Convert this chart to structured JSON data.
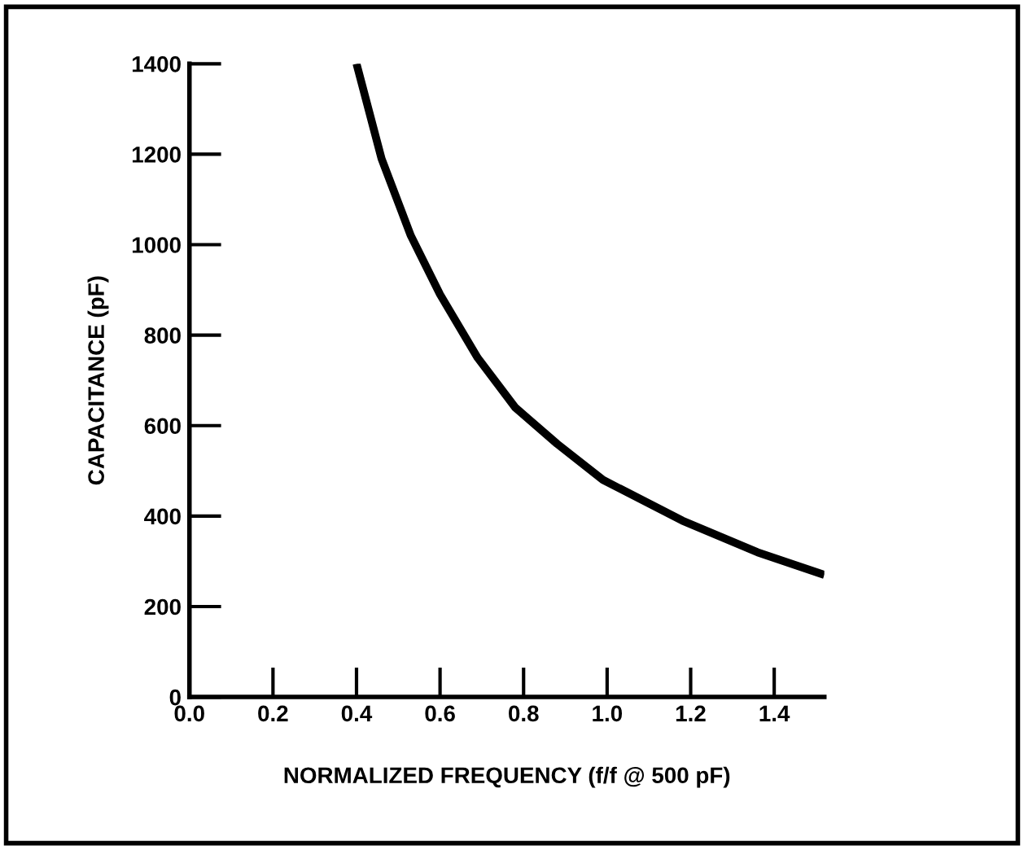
{
  "chart_data": {
    "type": "line",
    "xlabel": "NORMALIZED FREQUENCY (f/f @ 500 pF)",
    "ylabel": "CAPACITANCE (pF)",
    "x": [
      0.4,
      0.46,
      0.53,
      0.6,
      0.69,
      0.78,
      0.88,
      0.99,
      1.18,
      1.36,
      1.52
    ],
    "series": [
      {
        "color": "#000000",
        "values": [
          1400,
          1190,
          1020,
          890,
          750,
          640,
          560,
          480,
          390,
          320,
          270
        ]
      }
    ],
    "xlim": [
      0,
      1.52
    ],
    "ylim": [
      0,
      1400
    ],
    "xticks": [
      {
        "value": 0,
        "label": "0.0"
      },
      {
        "value": 0.2,
        "label": "0.2"
      },
      {
        "value": 0.4,
        "label": "0.4"
      },
      {
        "value": 0.6,
        "label": "0.6"
      },
      {
        "value": 0.8,
        "label": "0.8"
      },
      {
        "value": 1.0,
        "label": "1.0"
      },
      {
        "value": 1.2,
        "label": "1.2"
      },
      {
        "value": 1.4,
        "label": "1.4"
      }
    ],
    "yticks": [
      0,
      200,
      400,
      600,
      800,
      1000,
      1200,
      1400
    ],
    "grid": false,
    "legend": false,
    "marker": "none",
    "line_style": "solid"
  }
}
